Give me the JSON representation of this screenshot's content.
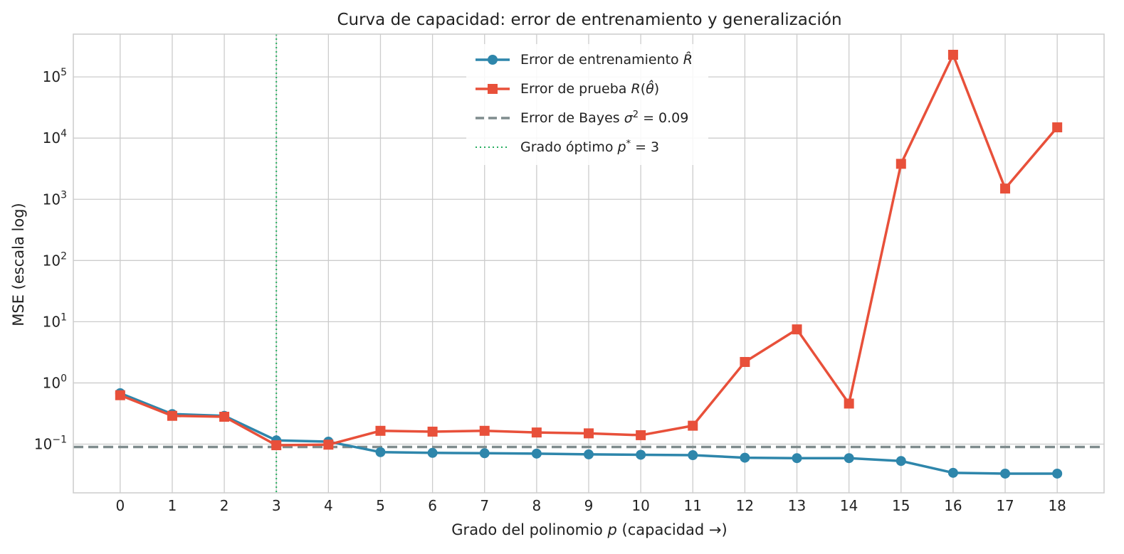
{
  "chart_data": {
    "type": "line",
    "title": "Curva de capacidad: error de entrenamiento y generalización",
    "xlabel": "Grado del polinomio p (capacidad →)",
    "ylabel": "MSE (escala log)",
    "yscale": "log",
    "xlim": [
      -0.9,
      18.9
    ],
    "ylim": [
      0.016,
      500000
    ],
    "grid": true,
    "legend_position": "top-center",
    "x": [
      0,
      1,
      2,
      3,
      4,
      5,
      6,
      7,
      8,
      9,
      10,
      11,
      12,
      13,
      14,
      15,
      16,
      17,
      18
    ],
    "x_ticks": [
      "0",
      "1",
      "2",
      "3",
      "4",
      "5",
      "6",
      "7",
      "8",
      "9",
      "10",
      "11",
      "12",
      "13",
      "14",
      "15",
      "16",
      "17",
      "18"
    ],
    "y_ticks": [
      {
        "value": 0.1,
        "base": "10",
        "exp": "−1"
      },
      {
        "value": 1,
        "base": "10",
        "exp": "0"
      },
      {
        "value": 10,
        "base": "10",
        "exp": "1"
      },
      {
        "value": 100,
        "base": "10",
        "exp": "2"
      },
      {
        "value": 1000,
        "base": "10",
        "exp": "3"
      },
      {
        "value": 10000,
        "base": "10",
        "exp": "4"
      },
      {
        "value": 100000,
        "base": "10",
        "exp": "5"
      }
    ],
    "series": [
      {
        "name": "Error de entrenamiento R̂",
        "color": "#2e86ab",
        "marker": "circle",
        "values": [
          0.68,
          0.31,
          0.29,
          0.115,
          0.11,
          0.074,
          0.072,
          0.071,
          0.07,
          0.068,
          0.067,
          0.066,
          0.06,
          0.059,
          0.059,
          0.053,
          0.034,
          0.033,
          0.033
        ]
      },
      {
        "name": "Error de prueba R(θ̂)",
        "color": "#e8503a",
        "marker": "square",
        "values": [
          0.63,
          0.29,
          0.28,
          0.096,
          0.098,
          0.165,
          0.16,
          0.165,
          0.155,
          0.15,
          0.14,
          0.2,
          2.2,
          7.5,
          0.46,
          3800,
          230000,
          1500,
          15000
        ]
      }
    ],
    "reference_lines": [
      {
        "name": "Error de Bayes σ² = 0.09",
        "orientation": "horizontal",
        "value": 0.09,
        "color": "#7f8c8d",
        "style": "dashed"
      },
      {
        "name": "Grado óptimo p* = 3",
        "orientation": "vertical",
        "value": 3,
        "color": "#27ae60",
        "style": "dotted"
      }
    ]
  }
}
